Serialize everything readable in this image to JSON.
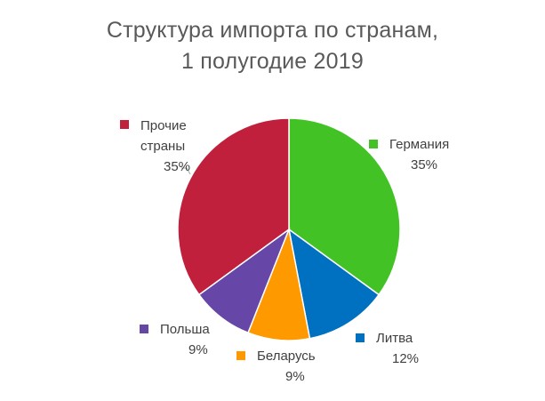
{
  "chart_data": {
    "type": "pie",
    "title": [
      "Структура импорта по странам,",
      "1 полугодие 2019"
    ],
    "series": [
      {
        "name": "Германия",
        "value": 35,
        "label": "35%",
        "color": "#42C225"
      },
      {
        "name": "Литва",
        "value": 12,
        "label": "12%",
        "color": "#0070C0"
      },
      {
        "name": "Беларусь",
        "value": 9,
        "label": "9%",
        "color": "#FF9900"
      },
      {
        "name": "Польша",
        "value": 9,
        "label": "9%",
        "color": "#6647A8"
      },
      {
        "name": "Прочие страны",
        "value": 35,
        "label": "35%",
        "color": "#C0203C",
        "name_lines": [
          "Прочие",
          "страны"
        ]
      }
    ]
  }
}
